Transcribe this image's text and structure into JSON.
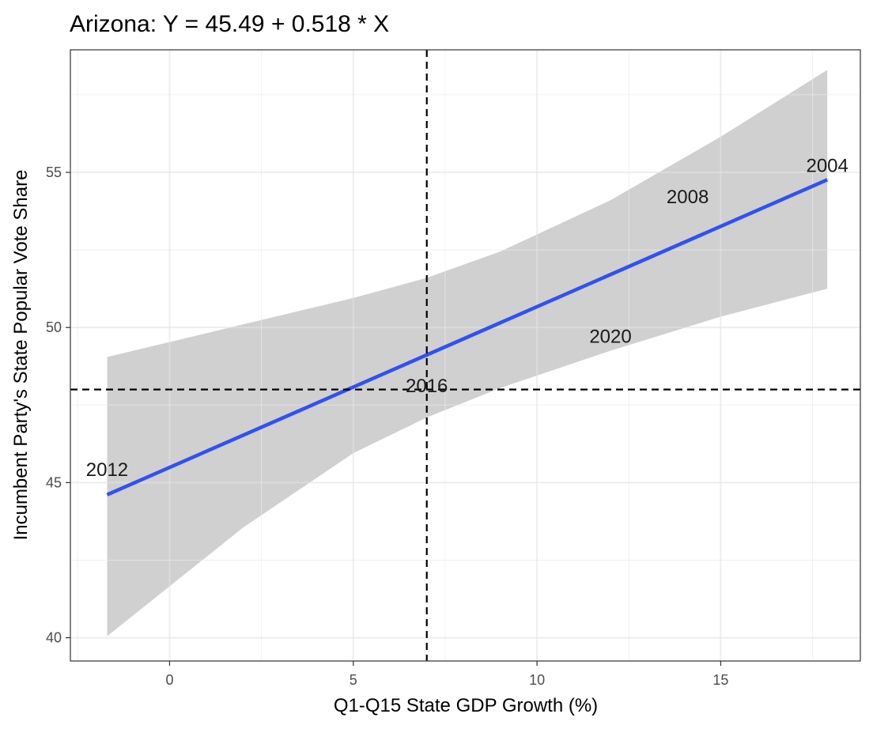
{
  "chart_data": {
    "type": "scatter",
    "title": "Arizona: Y = 45.49 + 0.518 * X",
    "xlabel": "Q1-Q15 State GDP Growth (%)",
    "ylabel": "Incumbent Party's State Popular Vote Share",
    "xlim": [
      -2.7,
      18.8
    ],
    "ylim": [
      39.25,
      58.95
    ],
    "x_ticks": [
      0,
      5,
      10,
      15
    ],
    "x_tick_labels": [
      "0",
      "5",
      "10",
      "15"
    ],
    "y_ticks": [
      40,
      45,
      50,
      55
    ],
    "y_tick_labels": [
      "40",
      "45",
      "50",
      "55"
    ],
    "grid": true,
    "points": [
      {
        "year": "2012",
        "x": -1.7,
        "y": 45.4
      },
      {
        "year": "2016",
        "x": 7.0,
        "y": 48.1
      },
      {
        "year": "2020",
        "x": 12.0,
        "y": 49.7
      },
      {
        "year": "2008",
        "x": 14.1,
        "y": 54.2
      },
      {
        "year": "2004",
        "x": 17.9,
        "y": 55.2
      }
    ],
    "fit": {
      "intercept": 45.49,
      "slope": 0.518,
      "x_range": [
        -1.7,
        17.9
      ],
      "color": "#3050f8"
    },
    "confidence_band": {
      "x": [
        -1.7,
        2.0,
        5.0,
        7.0,
        9.0,
        12.0,
        15.0,
        17.9
      ],
      "lower": [
        40.05,
        43.55,
        45.95,
        47.1,
        48.05,
        49.25,
        50.35,
        51.25
      ],
      "upper": [
        49.05,
        50.1,
        50.95,
        51.6,
        52.45,
        54.1,
        56.15,
        58.3
      ],
      "color": "#d0d0d0"
    },
    "reference_lines": {
      "vertical_x": 7.0,
      "horizontal_y": 48.0,
      "style": "dashed"
    }
  }
}
